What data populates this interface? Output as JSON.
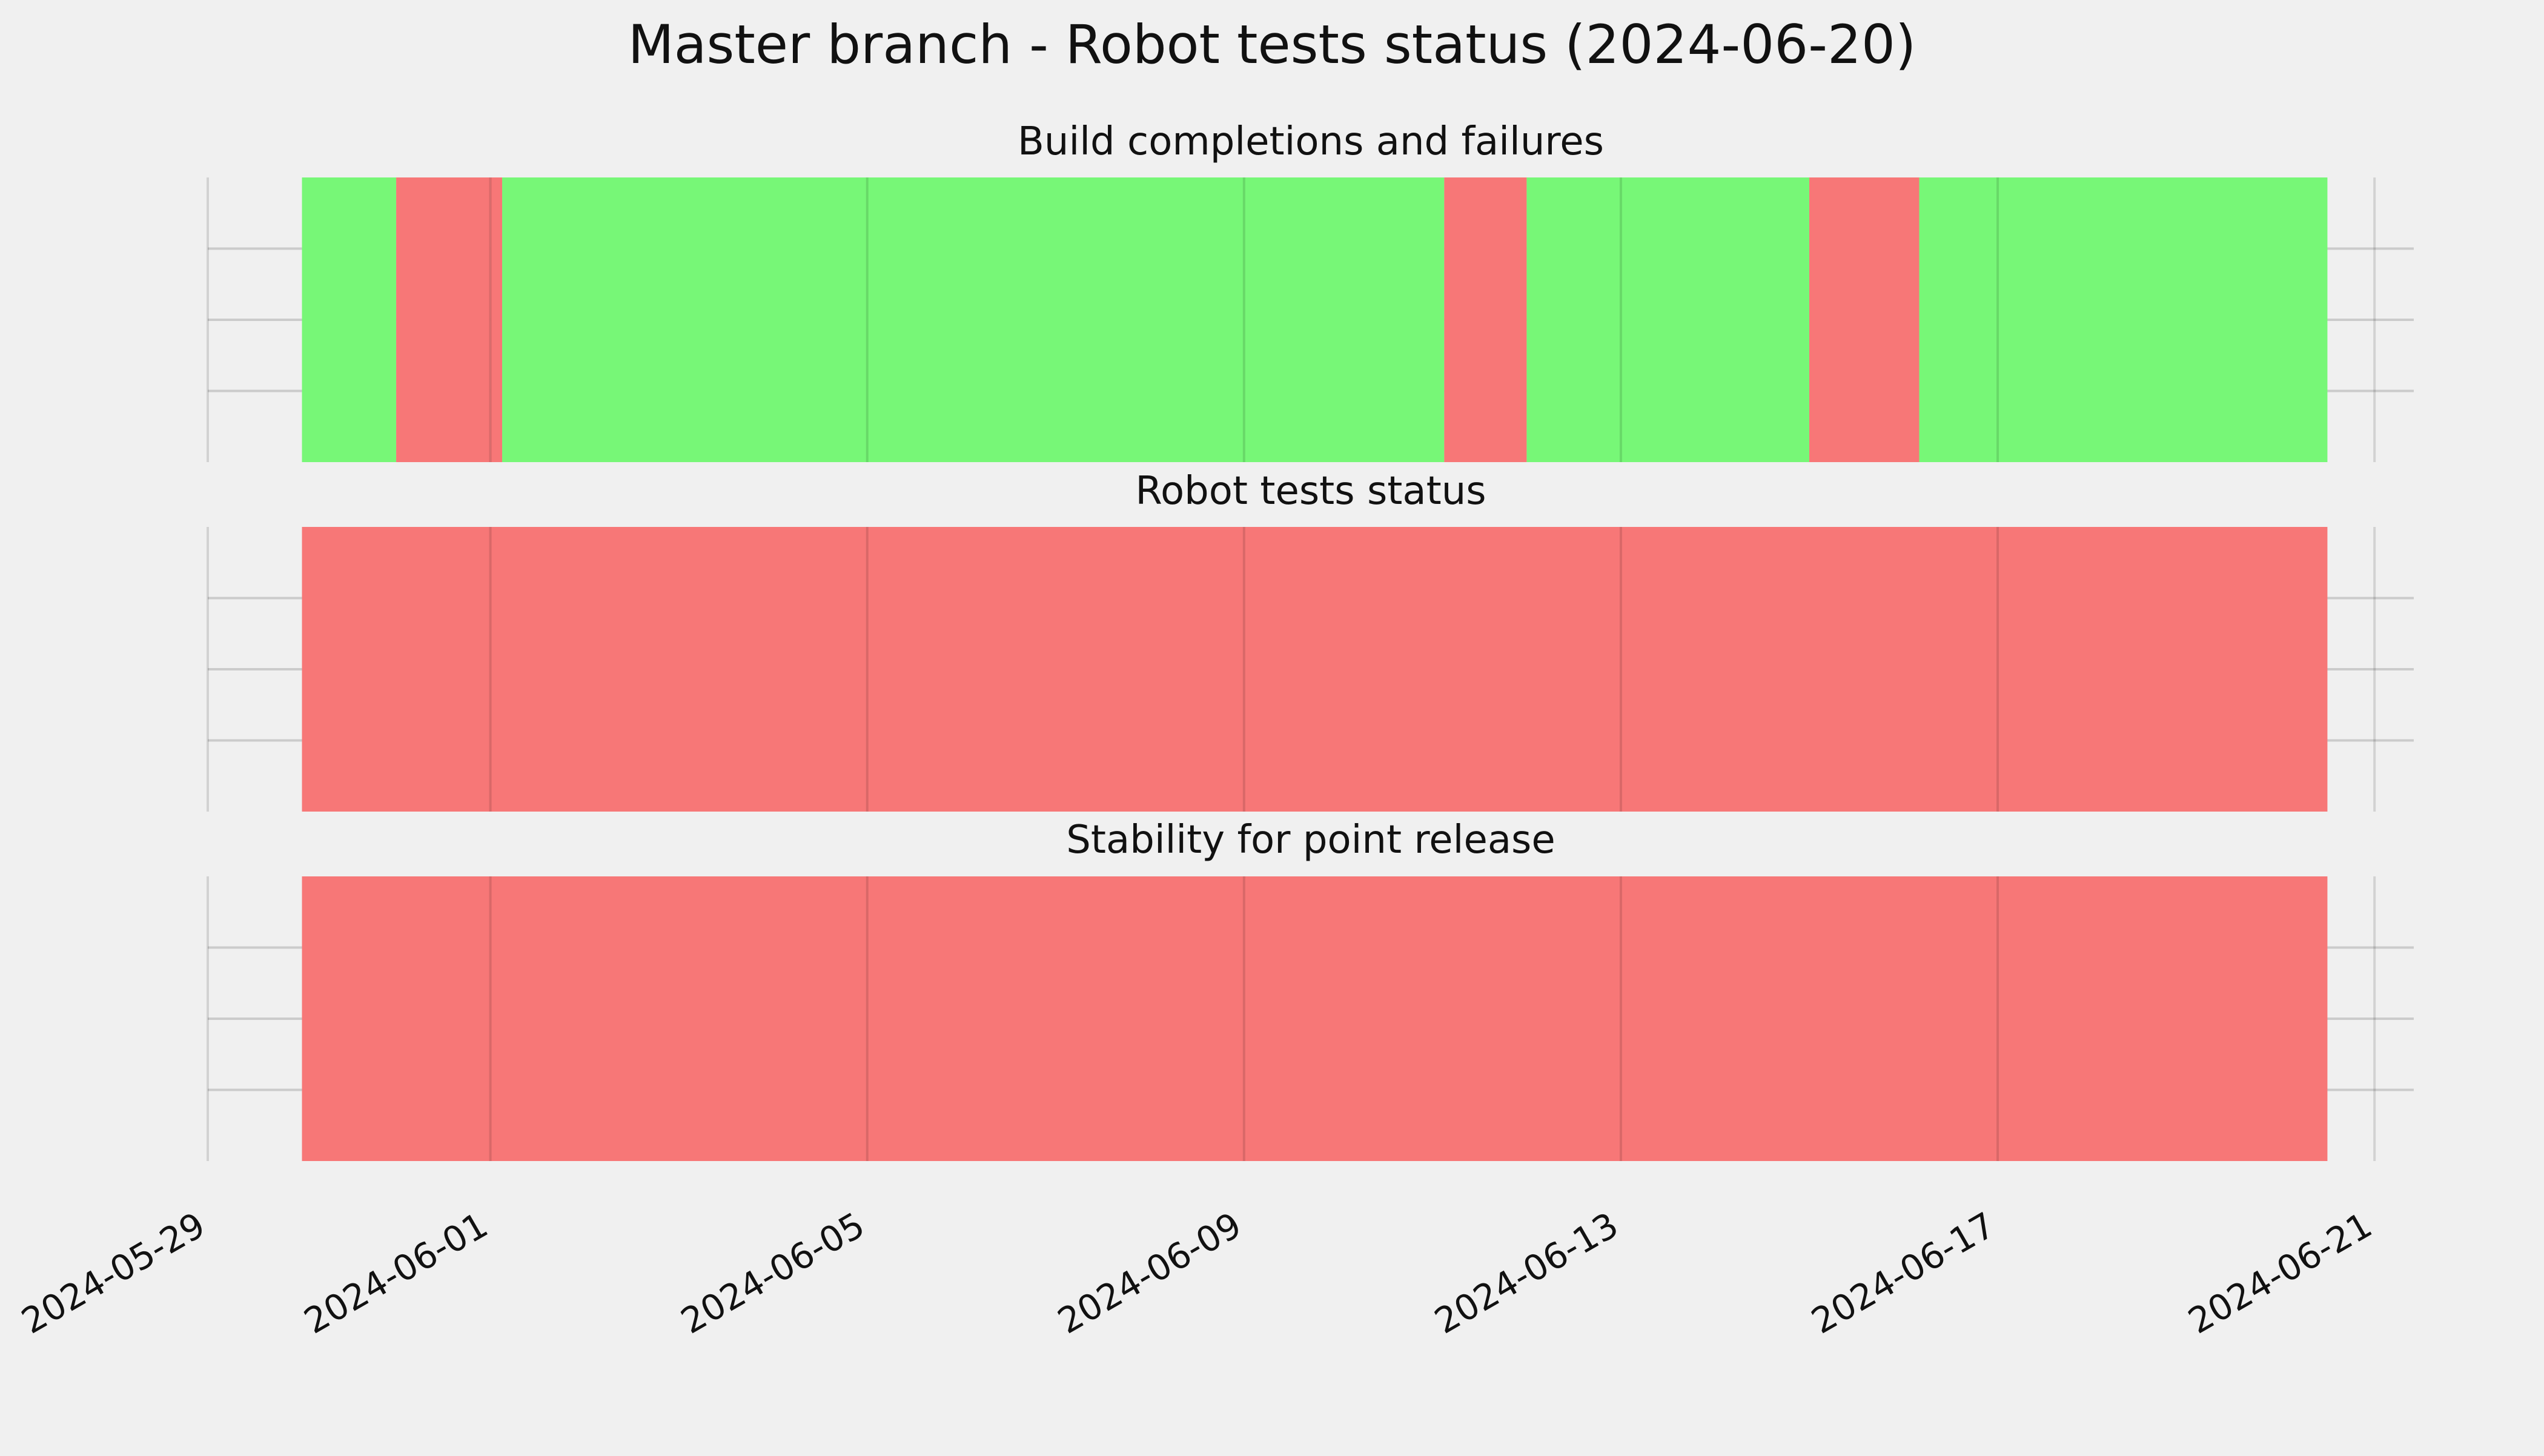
{
  "chart_data": {
    "type": "timeline",
    "title": "Master branch - Robot tests status (2024-06-20)",
    "x_axis": {
      "type": "date",
      "range": [
        "2024-05-29",
        "2024-06-21T10:00"
      ],
      "ticks": [
        "2024-05-29",
        "2024-06-01",
        "2024-06-05",
        "2024-06-09",
        "2024-06-13",
        "2024-06-17",
        "2024-06-21"
      ]
    },
    "grid": true,
    "colors": {
      "pass": "#77f777",
      "fail": "#f77777"
    },
    "panels": [
      {
        "subtitle": "Build completions and failures",
        "segments": [
          {
            "start": "2024-05-30T00:00",
            "end": "2024-05-31T00:00",
            "status": "pass"
          },
          {
            "start": "2024-05-31T00:00",
            "end": "2024-06-01T00:00",
            "status": "fail"
          },
          {
            "start": "2024-06-01T00:00",
            "end": "2024-06-01T03:00",
            "status": "fail"
          },
          {
            "start": "2024-06-01T03:00",
            "end": "2024-06-11T03:00",
            "status": "pass"
          },
          {
            "start": "2024-06-11T03:00",
            "end": "2024-06-12T00:00",
            "status": "fail"
          },
          {
            "start": "2024-06-12T00:00",
            "end": "2024-06-15T00:00",
            "status": "pass"
          },
          {
            "start": "2024-06-15T00:00",
            "end": "2024-06-16T04:00",
            "status": "fail"
          },
          {
            "start": "2024-06-16T04:00",
            "end": "2024-06-20T12:00",
            "status": "pass"
          }
        ]
      },
      {
        "subtitle": "Robot tests status",
        "segments": [
          {
            "start": "2024-05-30T00:00",
            "end": "2024-06-20T12:00",
            "status": "fail"
          }
        ]
      },
      {
        "subtitle": "Stability for point release",
        "segments": [
          {
            "start": "2024-05-30T00:00",
            "end": "2024-06-20T12:00",
            "status": "fail"
          }
        ]
      }
    ]
  }
}
